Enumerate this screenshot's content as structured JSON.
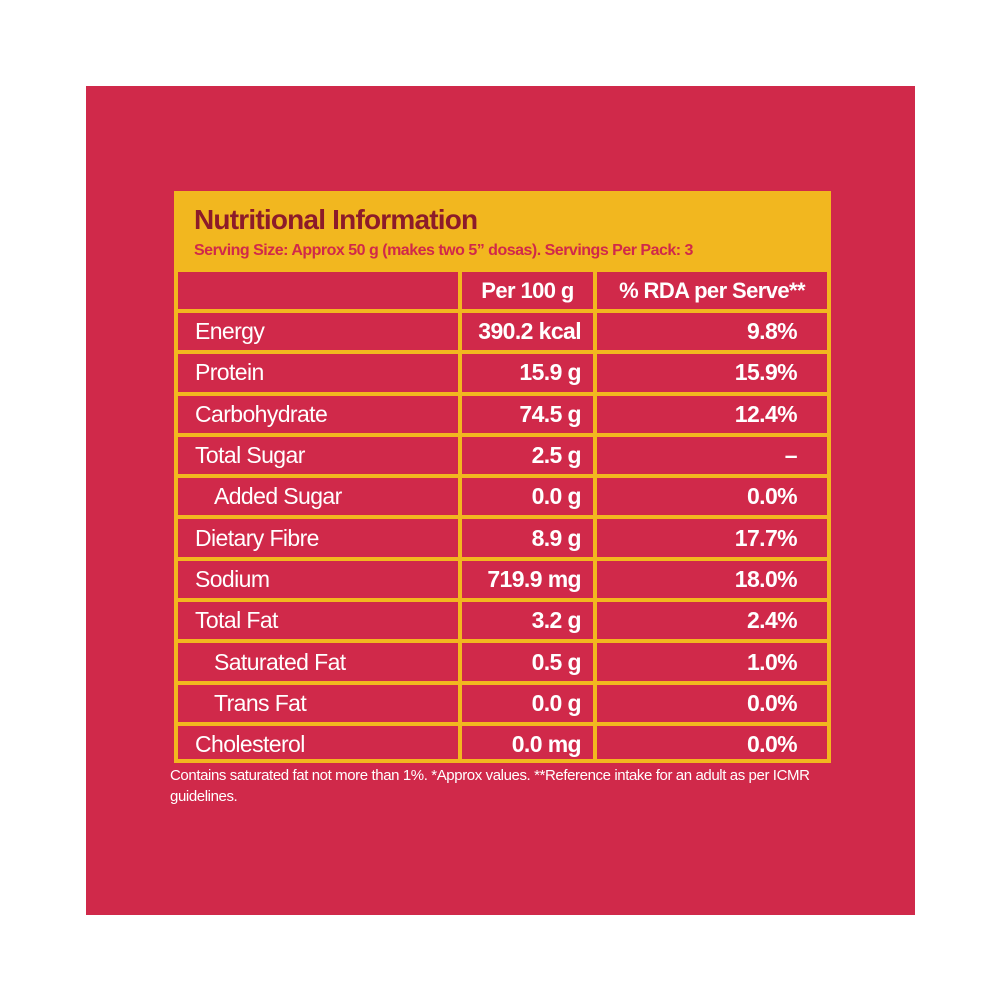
{
  "title": "Nutritional Information",
  "serving": "Serving Size: Approx 50 g (makes two 5” dosas). Servings Per Pack: 3",
  "columns": {
    "per100": "Per 100 g",
    "rda": "% RDA per Serve**"
  },
  "rows": [
    {
      "name": "Energy",
      "per100": "390.2 kcal",
      "rda": "9.8%",
      "indent": false
    },
    {
      "name": "Protein",
      "per100": "15.9 g",
      "rda": "15.9%",
      "indent": false
    },
    {
      "name": "Carbohydrate",
      "per100": "74.5 g",
      "rda": "12.4%",
      "indent": false
    },
    {
      "name": "Total Sugar",
      "per100": "2.5 g",
      "rda": "–",
      "indent": false
    },
    {
      "name": "Added Sugar",
      "per100": "0.0 g",
      "rda": "0.0%",
      "indent": true
    },
    {
      "name": "Dietary Fibre",
      "per100": "8.9 g",
      "rda": "17.7%",
      "indent": false
    },
    {
      "name": "Sodium",
      "per100": "719.9 mg",
      "rda": "18.0%",
      "indent": false
    },
    {
      "name": "Total Fat",
      "per100": "3.2 g",
      "rda": "2.4%",
      "indent": false
    },
    {
      "name": "Saturated Fat",
      "per100": "0.5 g",
      "rda": "1.0%",
      "indent": true
    },
    {
      "name": "Trans Fat",
      "per100": "0.0 g",
      "rda": "0.0%",
      "indent": true
    },
    {
      "name": "Cholesterol",
      "per100": "0.0 mg",
      "rda": "0.0%",
      "indent": false
    }
  ],
  "footnote": "Contains saturated fat not more than 1%. *Approx values. **Reference intake for an adult as per ICMR guidelines.",
  "colors": {
    "background": "#d0294a",
    "accent": "#f2b71f",
    "title": "#8c1b2a"
  }
}
